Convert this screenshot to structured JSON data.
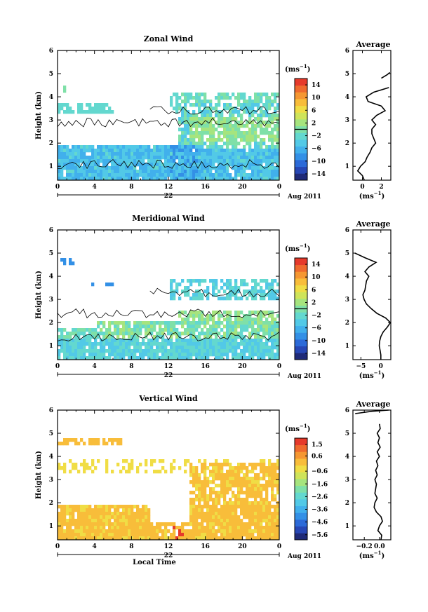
{
  "colors": {
    "colorbar": [
      "#1f2a78",
      "#2747b5",
      "#2c6ad8",
      "#3390e6",
      "#41b0ec",
      "#52c9e7",
      "#63d8cf",
      "#7fe0a8",
      "#a6e47e",
      "#cfe45a",
      "#f0dd45",
      "#f8bd3a",
      "#f59732",
      "#ef6a2e",
      "#e63a2b"
    ],
    "contour": "#000000"
  },
  "shared": {
    "xlabel": "Local Time",
    "date_center": "22",
    "date_right": "Aug 2011",
    "unit": "(ms",
    "unit_exp": "−1",
    "ylabel": "Height (km)",
    "avg_title": "Average",
    "x_ticks": [
      "0",
      "4",
      "8",
      "12",
      "16",
      "20",
      "0"
    ],
    "y_ticks": [
      "1",
      "2",
      "3",
      "4",
      "5",
      "6"
    ]
  },
  "chart_data": [
    {
      "type": "heatmap",
      "title": "Zonal Wind",
      "ylabel": "Height (km)",
      "xlim": [
        0,
        24
      ],
      "ylim": [
        0.4,
        6
      ],
      "colorbar_ticks": [
        "14",
        "10",
        "6",
        "2",
        "−2",
        "−6",
        "−10",
        "−14"
      ],
      "colorbar_range": [
        -16,
        16
      ],
      "profile": {
        "title": "Average",
        "xlim": [
          -1,
          3
        ],
        "x_ticks": [
          "0",
          "2"
        ],
        "heights": [
          0.4,
          0.6,
          0.8,
          1.0,
          1.2,
          1.4,
          1.6,
          1.8,
          2.0,
          2.2,
          2.4,
          2.6,
          2.8,
          3.0,
          3.2,
          3.4,
          3.6,
          3.8,
          4.0,
          4.2,
          4.4
        ],
        "values": [
          0.2,
          0.0,
          -0.5,
          -0.2,
          0.3,
          0.5,
          0.8,
          1.0,
          1.4,
          1.2,
          1.0,
          1.0,
          1.4,
          1.0,
          1.5,
          2.4,
          2.0,
          0.6,
          0.4,
          1.2,
          2.8
        ],
        "segment2": {
          "heights": [
            4.8,
            4.95,
            5.05
          ],
          "values": [
            2.0,
            2.6,
            2.9
          ]
        }
      }
    },
    {
      "type": "heatmap",
      "title": "Meridional Wind",
      "ylabel": "Height (km)",
      "xlim": [
        0,
        24
      ],
      "ylim": [
        0.4,
        6
      ],
      "colorbar_ticks": [
        "14",
        "10",
        "6",
        "2",
        "−2",
        "−6",
        "−10",
        "−14"
      ],
      "colorbar_range": [
        -16,
        16
      ],
      "profile": {
        "title": "Average",
        "xlim": [
          -7,
          2.5
        ],
        "x_ticks": [
          "−5",
          "0"
        ],
        "heights": [
          0.4,
          0.6,
          0.8,
          1.0,
          1.2,
          1.4,
          1.6,
          1.8,
          2.0,
          2.2,
          2.4,
          2.6,
          2.8,
          3.0,
          3.2,
          3.4,
          3.6,
          3.8,
          4.0,
          4.2,
          4.4,
          4.6,
          4.8,
          5.0
        ],
        "values": [
          0.0,
          0.0,
          -0.2,
          -0.4,
          -0.3,
          0.0,
          0.6,
          1.6,
          2.4,
          1.2,
          -1.0,
          -2.4,
          -3.6,
          -4.2,
          -4.5,
          -4.0,
          -3.8,
          -3.6,
          -3.0,
          -4.0,
          -3.0,
          -1.2,
          -4.0,
          -6.5
        ]
      }
    },
    {
      "type": "heatmap",
      "title": "Vertical Wind",
      "ylabel": "Height (km)",
      "xlim": [
        0,
        24
      ],
      "ylim": [
        0.4,
        6
      ],
      "colorbar_ticks": [
        "1.5",
        "0.6",
        "−0.6",
        "−1.6",
        "−2.6",
        "−3.6",
        "−4.6",
        "−5.6"
      ],
      "colorbar_range": [
        -6,
        2
      ],
      "profile": {
        "title": "Average",
        "xlim": [
          -0.35,
          0.15
        ],
        "x_ticks": [
          "−0.2",
          "0.0"
        ],
        "heights": [
          0.4,
          0.6,
          0.8,
          1.0,
          1.2,
          1.4,
          1.6,
          1.8,
          2.0,
          2.2,
          2.4,
          2.6,
          2.8,
          3.0,
          3.2,
          3.4,
          3.6,
          3.8,
          4.0,
          4.2,
          4.4,
          4.6,
          4.8,
          5.0,
          5.2,
          5.4
        ],
        "values": [
          0.02,
          0.03,
          -0.02,
          0.0,
          0.04,
          0.02,
          -0.04,
          -0.07,
          -0.06,
          -0.03,
          -0.06,
          -0.05,
          -0.04,
          -0.06,
          -0.03,
          -0.05,
          -0.02,
          -0.04,
          0.0,
          -0.03,
          0.01,
          -0.02,
          0.0,
          -0.03,
          0.01,
          0.0
        ],
        "segment2": {
          "heights": [
            5.85,
            5.95,
            6.0
          ],
          "values": [
            -0.32,
            -0.1,
            0.12
          ]
        }
      }
    }
  ]
}
